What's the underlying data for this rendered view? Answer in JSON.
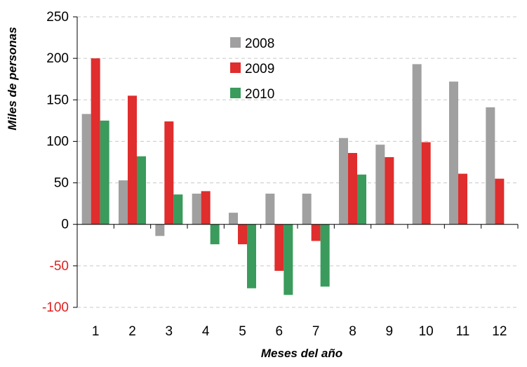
{
  "chart_data": {
    "type": "bar",
    "title": "",
    "xlabel": "Meses del año",
    "ylabel": "Miles de personas",
    "categories": [
      "1",
      "2",
      "3",
      "4",
      "5",
      "6",
      "7",
      "8",
      "9",
      "10",
      "11",
      "12"
    ],
    "ylim": [
      -100,
      250
    ],
    "yticks": [
      -100,
      -50,
      0,
      50,
      100,
      150,
      200,
      250
    ],
    "ytick_labels": [
      "-100",
      "-50",
      "0",
      "50",
      "100",
      "150",
      "200",
      "250"
    ],
    "negative_tick_color": "#e02020",
    "grid": true,
    "legend_position": "top-left inside plot",
    "series": [
      {
        "name": "2008",
        "color": "#a0a0a0",
        "values": [
          133,
          53,
          -14,
          37,
          14,
          37,
          37,
          104,
          96,
          193,
          172,
          141
        ]
      },
      {
        "name": "2009",
        "color": "#e02d2d",
        "values": [
          200,
          155,
          124,
          40,
          -24,
          -56,
          -20,
          86,
          81,
          99,
          61,
          55
        ]
      },
      {
        "name": "2010",
        "color": "#3a9b5c",
        "values": [
          125,
          82,
          36,
          -24,
          -77,
          -85,
          -75,
          60,
          null,
          null,
          null,
          null
        ]
      }
    ]
  }
}
